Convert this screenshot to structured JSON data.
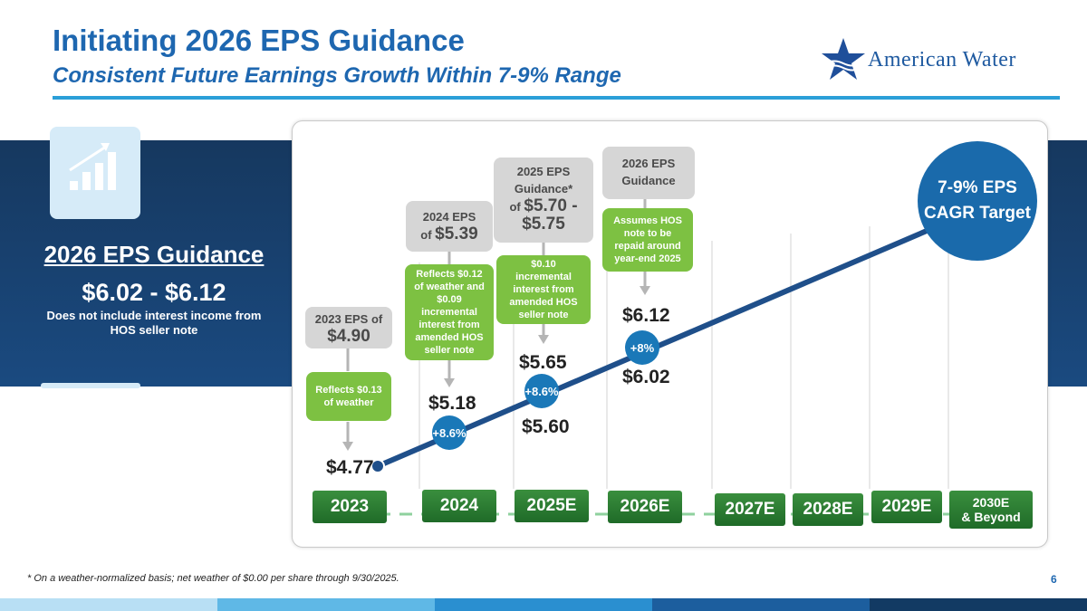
{
  "header": {
    "title": "Initiating 2026 EPS Guidance",
    "subtitle": "Consistent Future Earnings Growth Within 7-9% Range",
    "logo_text": "American Water"
  },
  "left_panel": {
    "heading": "2026 EPS Guidance",
    "range": "$6.02 - $6.12",
    "note": "Does not include interest income from HOS seller note",
    "icon": "growth-chart-icon"
  },
  "callouts": {
    "y2023_box_label": "2023 EPS of",
    "y2023_box_value": "$4.90",
    "y2023_green": "Reflects $0.13 of weather",
    "y2024_box_label": "2024 EPS",
    "y2024_box_prefix": "of",
    "y2024_box_value": "$5.39",
    "y2024_green": "Reflects $0.12 of weather and $0.09 incremental interest from amended HOS seller note",
    "y2025_box_line1": "2025 EPS",
    "y2025_box_line2": "Guidance*",
    "y2025_box_prefix": "of",
    "y2025_box_value1": "$5.70 -",
    "y2025_box_value2": "$5.75",
    "y2025_green": "$0.10 incremental interest from amended HOS seller note",
    "y2026_box_line1": "2026 EPS",
    "y2026_box_line2": "Guidance",
    "y2026_green": "Assumes HOS note to be repaid around year-end 2025"
  },
  "value_labels": {
    "v2023": "$4.77",
    "v2024": "$5.18",
    "v2025_high": "$5.65",
    "v2025_low": "$5.60",
    "v2026_high": "$6.12",
    "v2026_low": "$6.02"
  },
  "growth_badges": {
    "g2024": "+8.6%",
    "g2025": "+8.6%",
    "g2026": "+8%"
  },
  "cagr": {
    "line1": "7-9% EPS",
    "line2": "CAGR Target"
  },
  "years": {
    "y2023": "2023",
    "y2024": "2024",
    "y2025": "2025E",
    "y2026": "2026E",
    "y2027": "2027E",
    "y2028": "2028E",
    "y2029": "2029E",
    "y2030_line1": "2030E",
    "y2030_line2": "& Beyond"
  },
  "footer": {
    "footnote": "* On a weather-normalized basis; net weather of $0.00 per share through 9/30/2025.",
    "page": "6"
  },
  "colors": {
    "title_blue": "#1e67b0",
    "band_navy": "#16385f",
    "callout_green": "#7dc142",
    "badge_blue": "#1a78b8",
    "year_green": "#2e7d32",
    "trend_line": "#1f4f8a"
  },
  "chart_data": {
    "type": "line",
    "title": "Initiating 2026 EPS Guidance",
    "subtitle": "Consistent Future Earnings Growth Within 7-9% Range",
    "categories": [
      "2023",
      "2024",
      "2025E",
      "2026E",
      "2027E",
      "2028E",
      "2029E",
      "2030E & Beyond"
    ],
    "series": [
      {
        "values": [
          4.77,
          5.18,
          5.6,
          6.02,
          null,
          null,
          null,
          null
        ]
      },
      {
        "values": [
          4.77,
          5.18,
          5.65,
          6.12,
          null,
          null,
          null,
          null
        ]
      }
    ],
    "growth_labels": [
      "+8.6%",
      "+8.6%",
      "+8%"
    ],
    "annotations": [
      "7-9% EPS CAGR Target"
    ]
  }
}
